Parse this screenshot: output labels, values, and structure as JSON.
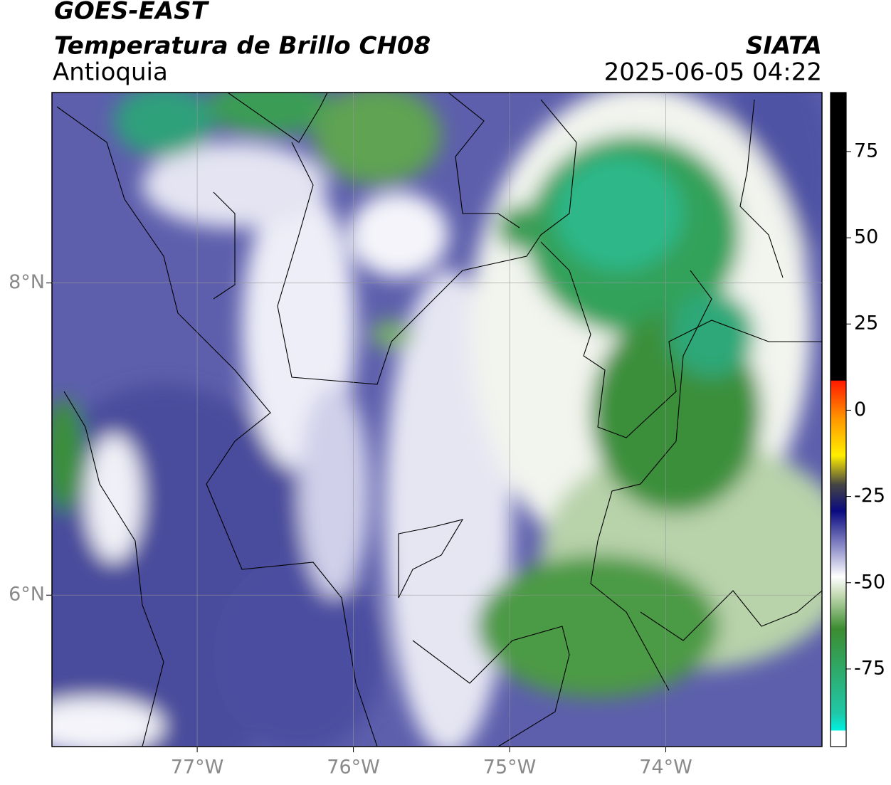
{
  "header": {
    "title": "GOES-EAST",
    "subtitle": "Temperatura de Brillo CH08",
    "region": "Antioquia",
    "source": "SIATA",
    "datetime": "2025-06-05 04:22"
  },
  "map": {
    "xlim": [
      -77.93,
      -73.0
    ],
    "ylim": [
      5.03,
      9.22
    ],
    "xticks": [
      {
        "value": -77,
        "label": "77°W"
      },
      {
        "value": -76,
        "label": "76°W"
      },
      {
        "value": -75,
        "label": "75°W"
      },
      {
        "value": -74,
        "label": "74°W"
      }
    ],
    "yticks": [
      {
        "value": 8,
        "label": "8°N"
      },
      {
        "value": 6,
        "label": "6°N"
      }
    ]
  },
  "colorbar": {
    "lim": [
      -97.5,
      92.1
    ],
    "ticks": [
      75,
      50,
      25,
      0,
      -25,
      -50,
      -75
    ]
  }
}
